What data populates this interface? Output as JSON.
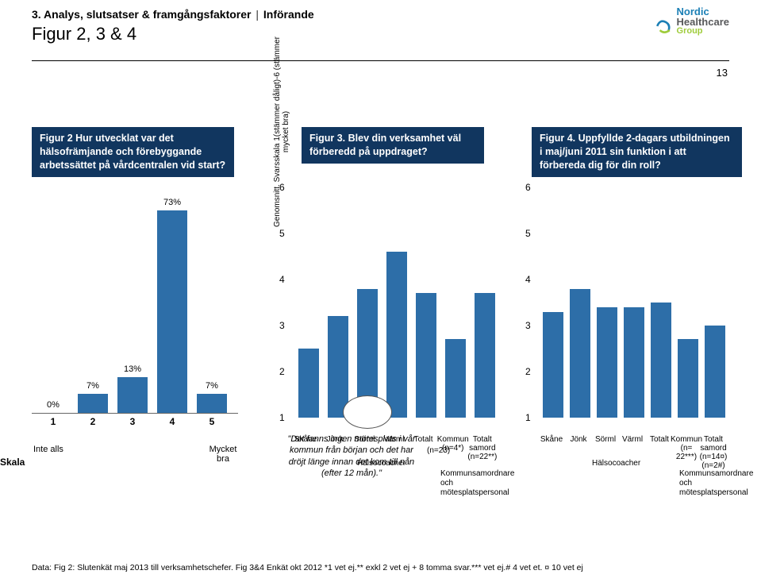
{
  "header": {
    "breadcrumb_section": "3. Analys, slutsatser & framgångsfaktorer",
    "breadcrumb_page": "Införande",
    "subtitle": "Figur 2, 3 & 4",
    "page_number": "13"
  },
  "logo": {
    "nordic": "Nordic",
    "healthcare": "Healthcare",
    "group": "Group",
    "color_nordic": "#1b7fb5",
    "color_hc": "#58595b",
    "color_grp": "#9fcc3b"
  },
  "fig2": {
    "title": "Figur 2 Hur utvecklat var det hälsofrämjande och förebyggande arbetssättet på vårdcentralen vid start?",
    "type": "bar",
    "categories": [
      "1",
      "2",
      "3",
      "4",
      "5"
    ],
    "values_pct": [
      0,
      7,
      13,
      73,
      7
    ],
    "labels": [
      "0%",
      "7%",
      "13%",
      "73%",
      "7%"
    ],
    "bar_color": "#2d6ea8",
    "ymax_pct": 80,
    "scale_label": "Skala",
    "left_anchor": "Inte alls",
    "right_anchor": "Mycket bra"
  },
  "fig3": {
    "title": "Figur 3. Blev din verksamhet väl förberedd på uppdraget?",
    "type": "bar",
    "ylabel": "Genomsnitt. Svarsskala 1(stämmer dåligt)-6 (stämmer mycket bra)",
    "categories": [
      "Skåne",
      "Jönk",
      "Sörml",
      "Värml",
      "Totalt"
    ],
    "values": [
      2.5,
      3.2,
      3.8,
      4.6,
      3.7
    ],
    "side_categories": [
      "Kommun (n=4*)",
      "Totalt samord (n=22**)"
    ],
    "side_values": [
      2.7,
      3.7
    ],
    "ylim": [
      1,
      6
    ],
    "ytick_step": 1,
    "bar_color": "#2d6ea8",
    "below_n": "(n=23)",
    "halsoc": "Hälsocoacher",
    "side_text": "Kommunsamordnare och mötesplatspersonal"
  },
  "fig4": {
    "title": "Figur 4. Uppfyllde 2-dagars utbildningen i maj/juni 2011 sin funktion i att förbereda dig för din roll?",
    "type": "bar",
    "categories": [
      "Skåne",
      "Jönk",
      "Sörml",
      "Värml",
      "Totalt"
    ],
    "values": [
      3.3,
      3.8,
      3.4,
      3.4,
      3.5
    ],
    "side_categories": [
      "Kommun (n= 22***)",
      "Totalt samord (n=14¤) (n=2#)"
    ],
    "side_values": [
      2.7,
      3.0
    ],
    "ylim": [
      1,
      6
    ],
    "ytick_step": 1,
    "bar_color": "#2d6ea8",
    "halsoc": "Hälsocoacher",
    "side_text": "Kommunsamordnare och mötesplatspersonal"
  },
  "callout": "\"Det fanns ingen mötesplats i vår kommun från början och det har dröjt länge innan det kom till nån (efter 12 mån).\"",
  "footer": "Data: Fig 2: Slutenkät maj 2013 till verksamhetschefer. Fig 3&4 Enkät okt 2012 *1 vet ej.** exkl 2 vet ej + 8 tomma svar.*** vet ej.# 4 vet et. ¤ 10 vet ej",
  "colors": {
    "title_bg": "#11365f",
    "title_fg": "#ffffff",
    "bar": "#2d6ea8",
    "text": "#000000"
  }
}
